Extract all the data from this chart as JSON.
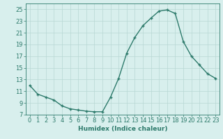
{
  "x": [
    0,
    1,
    2,
    3,
    4,
    5,
    6,
    7,
    8,
    9,
    10,
    11,
    12,
    13,
    14,
    15,
    16,
    17,
    18,
    19,
    20,
    21,
    22,
    23
  ],
  "y": [
    12.0,
    10.5,
    10.0,
    9.5,
    8.5,
    8.0,
    7.8,
    7.6,
    7.5,
    7.5,
    10.0,
    13.2,
    17.5,
    20.2,
    22.2,
    23.5,
    24.7,
    24.9,
    24.3,
    19.5,
    17.0,
    15.5,
    14.0,
    13.2
  ],
  "line_color": "#2d7a6b",
  "marker": "+",
  "marker_size": 3.5,
  "marker_lw": 1.0,
  "line_width": 1.0,
  "bg_color": "#d8efed",
  "grid_color": "#b8d8d4",
  "xlabel": "Humidex (Indice chaleur)",
  "xlim": [
    -0.5,
    23.5
  ],
  "ylim": [
    7,
    26
  ],
  "yticks": [
    7,
    9,
    11,
    13,
    15,
    17,
    19,
    21,
    23,
    25
  ],
  "xtick_labels": [
    "0",
    "1",
    "2",
    "3",
    "4",
    "5",
    "6",
    "7",
    "8",
    "9",
    "10",
    "11",
    "12",
    "13",
    "14",
    "15",
    "16",
    "17",
    "18",
    "19",
    "20",
    "21",
    "22",
    "23"
  ],
  "xlabel_fontsize": 6.5,
  "tick_fontsize": 6.0
}
